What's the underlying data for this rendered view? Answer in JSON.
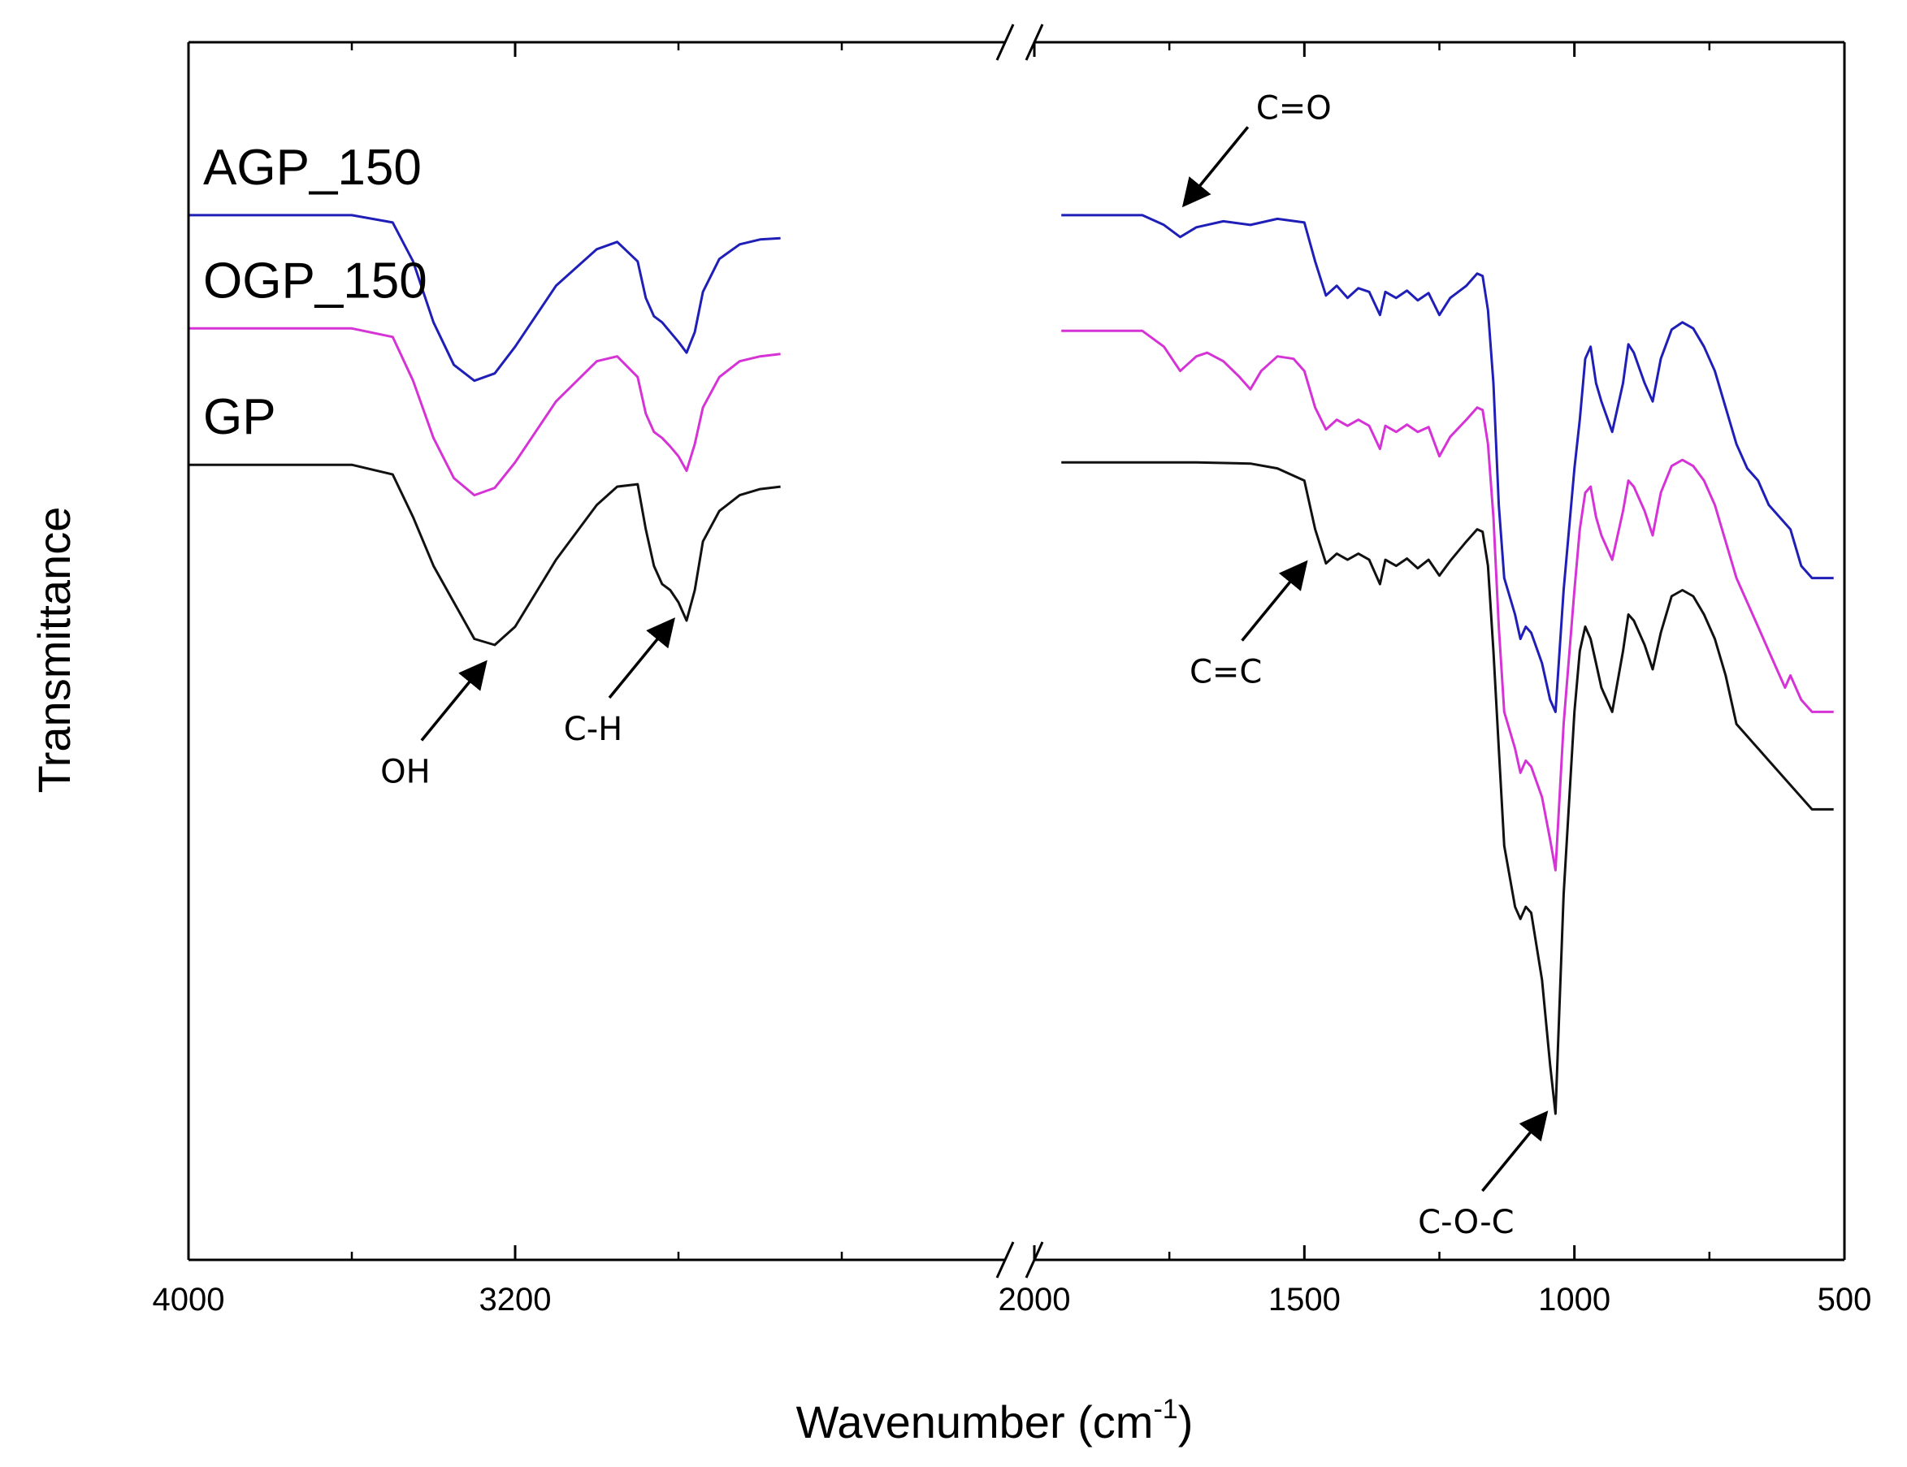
{
  "chart_data": {
    "type": "line",
    "title": "",
    "xlabel": "Wavenumber (cm",
    "xlabel_sup": "-1",
    "xlabel_close": ")",
    "ylabel": "Transmittance",
    "x_reversed": true,
    "x_break": [
      2000,
      3200
    ],
    "x_segments": [
      {
        "xlim": [
          4000,
          2000
        ],
        "ticks": [
          4000,
          3200,
          2000
        ]
      },
      {
        "xlim": [
          2000,
          500
        ],
        "ticks": [
          2000,
          1500,
          1000,
          500
        ]
      }
    ],
    "tick_labels": [
      "4000",
      "3200",
      "2000",
      "1500",
      "1000",
      "500"
    ],
    "y_ticks": "none",
    "series": [
      {
        "name": "AGP_150",
        "color": "#1f1fb8",
        "points": [
          [
            4000,
            0.858
          ],
          [
            3600,
            0.858
          ],
          [
            3500,
            0.852
          ],
          [
            3450,
            0.82
          ],
          [
            3400,
            0.77
          ],
          [
            3350,
            0.735
          ],
          [
            3300,
            0.722
          ],
          [
            3250,
            0.728
          ],
          [
            3200,
            0.75
          ],
          [
            3100,
            0.8
          ],
          [
            3000,
            0.83
          ],
          [
            2950,
            0.836
          ],
          [
            2900,
            0.82
          ],
          [
            2880,
            0.79
          ],
          [
            2860,
            0.775
          ],
          [
            2840,
            0.77
          ],
          [
            2820,
            0.762
          ],
          [
            2800,
            0.754
          ],
          [
            2780,
            0.745
          ],
          [
            2760,
            0.762
          ],
          [
            2740,
            0.795
          ],
          [
            2700,
            0.822
          ],
          [
            2650,
            0.834
          ],
          [
            2600,
            0.838
          ],
          [
            2550,
            0.839
          ],
          [
            1950,
            0.858
          ],
          [
            1800,
            0.858
          ],
          [
            1760,
            0.85
          ],
          [
            1730,
            0.84
          ],
          [
            1700,
            0.848
          ],
          [
            1650,
            0.853
          ],
          [
            1600,
            0.85
          ],
          [
            1550,
            0.855
          ],
          [
            1500,
            0.852
          ],
          [
            1480,
            0.82
          ],
          [
            1460,
            0.792
          ],
          [
            1440,
            0.8
          ],
          [
            1420,
            0.79
          ],
          [
            1400,
            0.798
          ],
          [
            1380,
            0.795
          ],
          [
            1360,
            0.776
          ],
          [
            1350,
            0.795
          ],
          [
            1330,
            0.79
          ],
          [
            1310,
            0.796
          ],
          [
            1290,
            0.788
          ],
          [
            1270,
            0.794
          ],
          [
            1250,
            0.776
          ],
          [
            1230,
            0.79
          ],
          [
            1200,
            0.8
          ],
          [
            1180,
            0.81
          ],
          [
            1170,
            0.808
          ],
          [
            1160,
            0.78
          ],
          [
            1150,
            0.72
          ],
          [
            1140,
            0.62
          ],
          [
            1130,
            0.56
          ],
          [
            1110,
            0.53
          ],
          [
            1100,
            0.51
          ],
          [
            1090,
            0.52
          ],
          [
            1080,
            0.515
          ],
          [
            1060,
            0.49
          ],
          [
            1045,
            0.46
          ],
          [
            1035,
            0.45
          ],
          [
            1020,
            0.55
          ],
          [
            1000,
            0.65
          ],
          [
            990,
            0.69
          ],
          [
            980,
            0.74
          ],
          [
            970,
            0.75
          ],
          [
            960,
            0.72
          ],
          [
            950,
            0.705
          ],
          [
            930,
            0.68
          ],
          [
            910,
            0.72
          ],
          [
            900,
            0.752
          ],
          [
            890,
            0.745
          ],
          [
            870,
            0.72
          ],
          [
            855,
            0.705
          ],
          [
            840,
            0.74
          ],
          [
            820,
            0.764
          ],
          [
            800,
            0.77
          ],
          [
            780,
            0.765
          ],
          [
            760,
            0.75
          ],
          [
            740,
            0.73
          ],
          [
            720,
            0.7
          ],
          [
            700,
            0.67
          ],
          [
            680,
            0.65
          ],
          [
            660,
            0.64
          ],
          [
            640,
            0.62
          ],
          [
            620,
            0.61
          ],
          [
            600,
            0.6
          ],
          [
            580,
            0.57
          ],
          [
            560,
            0.56
          ],
          [
            540,
            0.56
          ],
          [
            520,
            0.56
          ]
        ]
      },
      {
        "name": "OGP_150",
        "color": "#d633d6",
        "points": [
          [
            4000,
            0.765
          ],
          [
            3600,
            0.765
          ],
          [
            3500,
            0.758
          ],
          [
            3450,
            0.722
          ],
          [
            3400,
            0.675
          ],
          [
            3350,
            0.642
          ],
          [
            3300,
            0.628
          ],
          [
            3250,
            0.634
          ],
          [
            3200,
            0.655
          ],
          [
            3100,
            0.705
          ],
          [
            3000,
            0.738
          ],
          [
            2950,
            0.742
          ],
          [
            2900,
            0.725
          ],
          [
            2880,
            0.695
          ],
          [
            2860,
            0.68
          ],
          [
            2840,
            0.675
          ],
          [
            2820,
            0.668
          ],
          [
            2800,
            0.66
          ],
          [
            2780,
            0.648
          ],
          [
            2760,
            0.67
          ],
          [
            2740,
            0.7
          ],
          [
            2700,
            0.725
          ],
          [
            2650,
            0.738
          ],
          [
            2600,
            0.742
          ],
          [
            2550,
            0.744
          ],
          [
            1950,
            0.763
          ],
          [
            1800,
            0.763
          ],
          [
            1760,
            0.75
          ],
          [
            1730,
            0.73
          ],
          [
            1700,
            0.742
          ],
          [
            1680,
            0.745
          ],
          [
            1650,
            0.738
          ],
          [
            1620,
            0.725
          ],
          [
            1600,
            0.715
          ],
          [
            1580,
            0.73
          ],
          [
            1550,
            0.742
          ],
          [
            1520,
            0.74
          ],
          [
            1500,
            0.73
          ],
          [
            1480,
            0.7
          ],
          [
            1460,
            0.682
          ],
          [
            1440,
            0.69
          ],
          [
            1420,
            0.685
          ],
          [
            1400,
            0.69
          ],
          [
            1380,
            0.685
          ],
          [
            1360,
            0.666
          ],
          [
            1350,
            0.685
          ],
          [
            1330,
            0.68
          ],
          [
            1310,
            0.686
          ],
          [
            1290,
            0.68
          ],
          [
            1270,
            0.684
          ],
          [
            1250,
            0.66
          ],
          [
            1230,
            0.676
          ],
          [
            1200,
            0.69
          ],
          [
            1180,
            0.7
          ],
          [
            1170,
            0.698
          ],
          [
            1160,
            0.67
          ],
          [
            1150,
            0.61
          ],
          [
            1140,
            0.52
          ],
          [
            1130,
            0.45
          ],
          [
            1110,
            0.42
          ],
          [
            1100,
            0.4
          ],
          [
            1090,
            0.41
          ],
          [
            1080,
            0.405
          ],
          [
            1060,
            0.38
          ],
          [
            1045,
            0.345
          ],
          [
            1035,
            0.32
          ],
          [
            1020,
            0.44
          ],
          [
            1000,
            0.55
          ],
          [
            990,
            0.6
          ],
          [
            980,
            0.63
          ],
          [
            970,
            0.635
          ],
          [
            960,
            0.61
          ],
          [
            950,
            0.595
          ],
          [
            930,
            0.575
          ],
          [
            910,
            0.615
          ],
          [
            900,
            0.64
          ],
          [
            890,
            0.635
          ],
          [
            870,
            0.615
          ],
          [
            855,
            0.595
          ],
          [
            840,
            0.63
          ],
          [
            820,
            0.652
          ],
          [
            800,
            0.657
          ],
          [
            780,
            0.652
          ],
          [
            760,
            0.64
          ],
          [
            740,
            0.62
          ],
          [
            720,
            0.59
          ],
          [
            700,
            0.56
          ],
          [
            680,
            0.54
          ],
          [
            660,
            0.52
          ],
          [
            640,
            0.5
          ],
          [
            620,
            0.48
          ],
          [
            610,
            0.47
          ],
          [
            600,
            0.48
          ],
          [
            580,
            0.46
          ],
          [
            560,
            0.45
          ],
          [
            540,
            0.45
          ],
          [
            520,
            0.45
          ]
        ]
      },
      {
        "name": "GP",
        "color": "#111111",
        "points": [
          [
            4000,
            0.653
          ],
          [
            3600,
            0.653
          ],
          [
            3500,
            0.645
          ],
          [
            3450,
            0.61
          ],
          [
            3400,
            0.57
          ],
          [
            3350,
            0.54
          ],
          [
            3300,
            0.51
          ],
          [
            3250,
            0.505
          ],
          [
            3200,
            0.52
          ],
          [
            3100,
            0.575
          ],
          [
            3000,
            0.62
          ],
          [
            2950,
            0.635
          ],
          [
            2900,
            0.637
          ],
          [
            2880,
            0.6
          ],
          [
            2860,
            0.57
          ],
          [
            2840,
            0.555
          ],
          [
            2820,
            0.55
          ],
          [
            2800,
            0.54
          ],
          [
            2780,
            0.525
          ],
          [
            2760,
            0.55
          ],
          [
            2740,
            0.59
          ],
          [
            2700,
            0.615
          ],
          [
            2650,
            0.628
          ],
          [
            2600,
            0.633
          ],
          [
            2550,
            0.635
          ],
          [
            1950,
            0.655
          ],
          [
            1800,
            0.655
          ],
          [
            1700,
            0.655
          ],
          [
            1600,
            0.654
          ],
          [
            1550,
            0.65
          ],
          [
            1500,
            0.64
          ],
          [
            1480,
            0.6
          ],
          [
            1460,
            0.572
          ],
          [
            1440,
            0.58
          ],
          [
            1420,
            0.575
          ],
          [
            1400,
            0.58
          ],
          [
            1380,
            0.575
          ],
          [
            1360,
            0.555
          ],
          [
            1350,
            0.575
          ],
          [
            1330,
            0.57
          ],
          [
            1310,
            0.576
          ],
          [
            1290,
            0.568
          ],
          [
            1270,
            0.575
          ],
          [
            1250,
            0.562
          ],
          [
            1230,
            0.574
          ],
          [
            1200,
            0.59
          ],
          [
            1180,
            0.6
          ],
          [
            1170,
            0.598
          ],
          [
            1160,
            0.57
          ],
          [
            1150,
            0.5
          ],
          [
            1140,
            0.42
          ],
          [
            1130,
            0.34
          ],
          [
            1110,
            0.29
          ],
          [
            1100,
            0.28
          ],
          [
            1090,
            0.29
          ],
          [
            1080,
            0.285
          ],
          [
            1060,
            0.23
          ],
          [
            1045,
            0.16
          ],
          [
            1035,
            0.12
          ],
          [
            1020,
            0.3
          ],
          [
            1000,
            0.45
          ],
          [
            990,
            0.5
          ],
          [
            980,
            0.52
          ],
          [
            970,
            0.51
          ],
          [
            960,
            0.49
          ],
          [
            950,
            0.47
          ],
          [
            930,
            0.45
          ],
          [
            910,
            0.5
          ],
          [
            900,
            0.53
          ],
          [
            890,
            0.525
          ],
          [
            870,
            0.505
          ],
          [
            855,
            0.485
          ],
          [
            840,
            0.515
          ],
          [
            820,
            0.545
          ],
          [
            800,
            0.55
          ],
          [
            780,
            0.545
          ],
          [
            760,
            0.53
          ],
          [
            740,
            0.51
          ],
          [
            720,
            0.48
          ],
          [
            700,
            0.44
          ],
          [
            680,
            0.43
          ],
          [
            660,
            0.42
          ],
          [
            640,
            0.41
          ],
          [
            620,
            0.4
          ],
          [
            600,
            0.39
          ],
          [
            580,
            0.38
          ],
          [
            560,
            0.37
          ],
          [
            540,
            0.37
          ],
          [
            520,
            0.37
          ]
        ]
      }
    ],
    "series_labels": [
      {
        "text": "AGP_150",
        "series": "AGP_150"
      },
      {
        "text": "OGP_150",
        "series": "OGP_150"
      },
      {
        "text": "GP",
        "series": "GP"
      }
    ],
    "annotations": [
      {
        "text": "OH",
        "x": 3250,
        "y": 0.5
      },
      {
        "text": "C-H",
        "x": 2790,
        "y": 0.535
      },
      {
        "text": "C=C",
        "x": 1480,
        "y": 0.582
      },
      {
        "text": "C=O",
        "x": 1740,
        "y": 0.857
      },
      {
        "text": "C-O-C",
        "x": 1035,
        "y": 0.13
      }
    ]
  }
}
